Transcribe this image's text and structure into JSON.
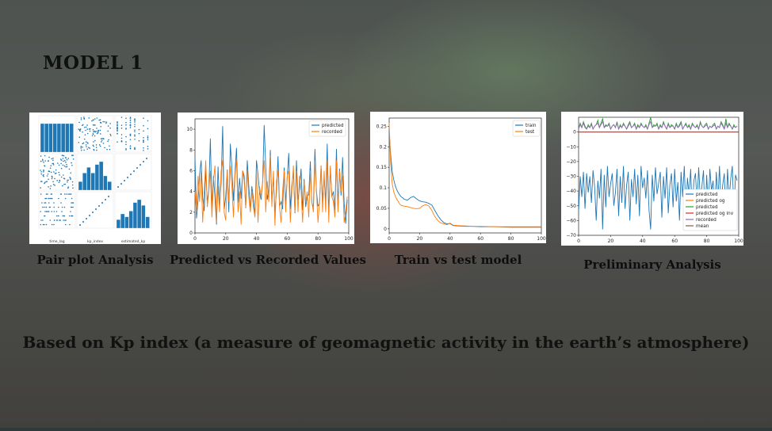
{
  "slide": {
    "title": "MODEL 1",
    "subtitle": "Based on Kp index (a measure of geomagnetic activity in the earth’s atmosphere)"
  },
  "figures": [
    {
      "caption": "Pair plot Analysis",
      "axis_labels": [
        "time_lag",
        "kp_index",
        "estimated_kp"
      ]
    },
    {
      "caption": "Predicted vs Recorded Values",
      "legend": [
        "predicted",
        "recorded"
      ]
    },
    {
      "caption": "Train vs test model",
      "legend": [
        "train",
        "test"
      ]
    },
    {
      "caption": "Preliminary Analysis",
      "legend": [
        "predicted",
        "predicted og",
        "predicted",
        "predicted og inv",
        "recorded",
        "mean"
      ]
    }
  ],
  "colors": {
    "blue": "#1f77b4",
    "orange": "#ff7f0e",
    "green": "#2ca02c",
    "red": "#d62728",
    "purple": "#9467bd",
    "brown": "#8c564b"
  },
  "chart_data": [
    {
      "type": "scatter",
      "title": "",
      "variables": [
        "time_lag",
        "kp_index",
        "estimated_kp"
      ],
      "note": "pair plot matrix (3x3) with histograms on diagonal"
    },
    {
      "type": "line",
      "xlabel": "",
      "ylabel": "",
      "xlim": [
        0,
        100
      ],
      "ylim": [
        0,
        11
      ],
      "xticks": [
        0,
        20,
        40,
        60,
        80,
        100
      ],
      "yticks": [
        0,
        2,
        4,
        6,
        8,
        10
      ],
      "series": [
        {
          "name": "predicted",
          "color": "#1f77b4",
          "values": [
            7.3,
            1.4,
            3.2,
            5.7,
            7.0,
            3.4,
            2.1,
            6.1,
            3.0,
            4.1,
            9.1,
            2.4,
            5.5,
            3.4,
            0.8,
            6.4,
            2.6,
            4.8,
            10.3,
            2.3,
            3.5,
            6.1,
            2.0,
            8.6,
            6.3,
            3.1,
            5.8,
            8.2,
            2.9,
            5.3,
            3.3,
            6.0,
            5.5,
            2.4,
            7.0,
            4.5,
            2.2,
            4.5,
            3.3,
            1.7,
            7.0,
            5.6,
            3.9,
            3.2,
            4.9,
            10.4,
            6.5,
            3.2,
            4.1,
            8.0,
            3.0,
            5.4,
            2.0,
            4.0,
            7.4,
            2.6,
            3.0,
            2.3,
            6.3,
            2.8,
            5.4,
            7.7,
            2.3,
            4.6,
            5.9,
            1.9,
            7.0,
            3.2,
            4.3,
            6.2,
            2.2,
            5.2,
            2.5,
            3.5,
            3.7,
            6.9,
            2.9,
            2.5,
            8.1,
            4.0,
            2.6,
            2.8,
            6.5,
            3.1,
            5.4,
            3.0,
            8.6,
            1.9,
            6.3,
            3.5,
            4.0,
            2.2,
            8.1,
            2.3,
            6.2,
            3.6,
            7.3,
            2.9,
            0.9,
            3.2
          ]
        },
        {
          "name": "recorded",
          "color": "#ff7f0e",
          "values": [
            4.0,
            2.0,
            5.5,
            3.0,
            6.0,
            1.0,
            4.0,
            7.0,
            2.5,
            4.0,
            6.0,
            1.5,
            5.0,
            6.5,
            1.0,
            4.5,
            2.0,
            6.0,
            7.0,
            2.0,
            1.2,
            6.0,
            3.0,
            6.5,
            4.5,
            1.5,
            5.5,
            7.0,
            2.0,
            4.0,
            0.8,
            6.0,
            5.0,
            2.5,
            6.0,
            3.5,
            2.0,
            4.0,
            2.5,
            1.5,
            6.0,
            1.0,
            4.5,
            3.5,
            5.0,
            7.0,
            2.0,
            5.0,
            3.0,
            7.5,
            2.5,
            6.0,
            0.7,
            5.0,
            6.0,
            2.5,
            1.0,
            4.0,
            6.0,
            2.0,
            5.5,
            6.0,
            1.0,
            4.0,
            6.5,
            2.0,
            6.0,
            2.0,
            5.5,
            4.0,
            1.0,
            5.0,
            3.0,
            4.0,
            1.5,
            6.0,
            3.0,
            2.0,
            7.0,
            4.0,
            1.0,
            3.0,
            6.5,
            2.0,
            6.0,
            2.0,
            7.0,
            1.0,
            6.5,
            3.5,
            3.0,
            1.5,
            7.0,
            2.0,
            6.0,
            4.0,
            5.5,
            1.0,
            2.0,
            3.5
          ]
        }
      ]
    },
    {
      "type": "line",
      "xlim": [
        0,
        100
      ],
      "ylim": [
        -0.01,
        0.27
      ],
      "xticks": [
        0,
        20,
        40,
        60,
        80,
        100
      ],
      "yticks": [
        0.0,
        0.05,
        0.1,
        0.15,
        0.2,
        0.25
      ],
      "series": [
        {
          "name": "train",
          "color": "#1f77b4",
          "x": [
            0,
            1,
            2,
            3,
            4,
            5,
            6,
            7,
            8,
            9,
            10,
            12,
            14,
            16,
            18,
            20,
            22,
            24,
            26,
            28,
            30,
            32,
            34,
            36,
            38,
            40,
            42,
            45,
            50,
            55,
            60,
            70,
            80,
            90,
            100
          ],
          "values": [
            0.235,
            0.18,
            0.14,
            0.12,
            0.105,
            0.095,
            0.088,
            0.082,
            0.078,
            0.075,
            0.072,
            0.07,
            0.076,
            0.079,
            0.073,
            0.068,
            0.066,
            0.065,
            0.062,
            0.058,
            0.045,
            0.032,
            0.022,
            0.015,
            0.012,
            0.013,
            0.008,
            0.007,
            0.006,
            0.006,
            0.005,
            0.005,
            0.004,
            0.004,
            0.004
          ]
        },
        {
          "name": "test",
          "color": "#ff7f0e",
          "x": [
            0,
            1,
            2,
            3,
            4,
            5,
            6,
            7,
            8,
            9,
            10,
            12,
            14,
            16,
            18,
            20,
            22,
            24,
            26,
            28,
            30,
            32,
            34,
            36,
            38,
            40,
            42,
            45,
            50,
            55,
            60,
            70,
            80,
            90,
            100
          ],
          "values": [
            0.258,
            0.16,
            0.11,
            0.09,
            0.08,
            0.072,
            0.066,
            0.06,
            0.057,
            0.056,
            0.055,
            0.054,
            0.052,
            0.05,
            0.049,
            0.05,
            0.056,
            0.059,
            0.056,
            0.045,
            0.03,
            0.02,
            0.014,
            0.012,
            0.01,
            0.014,
            0.009,
            0.008,
            0.007,
            0.006,
            0.006,
            0.005,
            0.005,
            0.005,
            0.005
          ]
        }
      ]
    },
    {
      "type": "line",
      "xlim": [
        0,
        100
      ],
      "ylim": [
        -70,
        10
      ],
      "xticks": [
        0,
        20,
        40,
        60,
        80,
        100
      ],
      "yticks": [
        0,
        -10,
        -20,
        -30,
        -40,
        -50,
        -60,
        -70
      ],
      "series": [
        {
          "name": "predicted",
          "color": "#1f77b4",
          "values": [
            -54,
            -30,
            -44,
            -27,
            -52,
            -28,
            -41,
            -30,
            -48,
            -26,
            -37,
            -60,
            -33,
            -45,
            -25,
            -66,
            -29,
            -51,
            -23,
            -44,
            -35,
            -28,
            -50,
            -41,
            -25,
            -57,
            -30,
            -48,
            -23,
            -52,
            -36,
            -27,
            -60,
            -32,
            -44,
            -25,
            -49,
            -29,
            -57,
            -23,
            -38,
            -31,
            -45,
            -26,
            -53,
            -66,
            -29,
            -47,
            -24,
            -42,
            -35,
            -27,
            -58,
            -30,
            -45,
            -24,
            -55,
            -36,
            -28,
            -51,
            -25,
            -47,
            -34,
            -60,
            -27,
            -44,
            -23,
            -54,
            -31,
            -43,
            -25,
            -58,
            -33,
            -28,
            -49,
            -24,
            -45,
            -37,
            -26,
            -61,
            -29,
            -52,
            -25,
            -40,
            -33,
            -56,
            -27,
            -47,
            -23,
            -51,
            -36,
            -28,
            -59,
            -25,
            -46,
            -32,
            -23,
            -55,
            -29,
            -33
          ]
        },
        {
          "name": "predicted og",
          "color": "#ff7f0e",
          "values": []
        },
        {
          "name": "predicted",
          "color": "#2ca02c",
          "values": [
            2,
            6,
            3,
            7,
            4,
            2,
            5,
            3,
            6,
            2,
            4,
            5,
            8,
            3,
            6,
            9,
            3,
            5,
            4,
            6,
            2,
            4,
            5,
            3,
            7,
            2,
            5,
            3,
            6,
            4,
            2,
            5,
            7,
            3,
            4,
            6,
            2,
            5,
            3,
            6,
            4,
            3,
            5,
            2,
            6,
            10,
            3,
            5,
            4,
            6,
            2,
            5,
            3,
            7,
            4,
            2,
            6,
            3,
            5,
            4,
            2,
            6,
            3,
            5,
            7,
            2,
            4,
            6,
            3,
            5,
            2,
            6,
            4,
            3,
            5,
            2,
            7,
            4,
            3,
            5,
            6,
            2,
            4,
            3,
            5,
            6,
            2,
            4,
            3,
            7,
            5,
            2,
            9,
            3,
            6,
            4,
            2,
            5,
            3,
            4
          ]
        },
        {
          "name": "predicted og inv",
          "color": "#d62728",
          "values": [
            0
          ]
        },
        {
          "name": "recorded",
          "color": "#9467bd",
          "values": [
            2,
            5,
            3,
            6,
            3,
            2,
            4,
            3,
            5,
            2,
            4,
            5,
            6,
            3,
            5,
            7,
            3,
            4,
            4,
            5,
            2,
            4,
            5,
            3,
            6,
            2,
            4,
            3,
            5,
            4,
            2,
            4,
            6,
            3,
            4,
            5,
            2,
            4,
            3,
            5,
            4,
            3,
            4,
            2,
            5,
            7,
            3,
            4,
            4,
            5,
            2,
            4,
            3,
            6,
            4,
            2,
            5,
            3,
            4,
            4,
            2,
            5,
            3,
            4,
            6,
            2,
            4,
            5,
            3,
            4,
            2,
            5,
            4,
            3,
            4,
            2,
            6,
            4,
            3,
            4,
            5,
            2,
            4,
            3,
            4,
            5,
            2,
            4,
            3,
            6,
            4,
            2,
            6,
            3,
            5,
            4,
            2,
            4,
            3,
            4
          ]
        },
        {
          "name": "mean",
          "color": "#8c564b",
          "values": [
            0
          ]
        }
      ]
    }
  ]
}
